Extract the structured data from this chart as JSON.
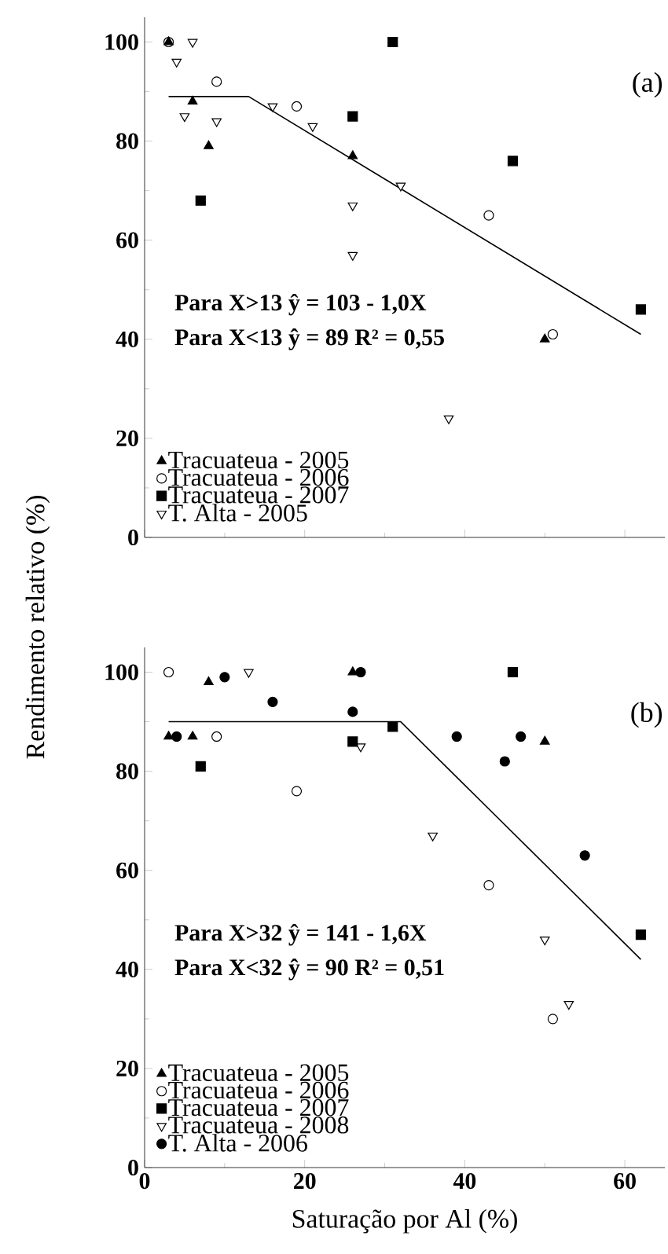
{
  "chart_data": [
    {
      "type": "scatter",
      "ylabel": "Rendimento relativo (%)",
      "xlim": [
        0,
        65
      ],
      "ylim": [
        0,
        105
      ],
      "xticks": [
        0,
        20,
        40,
        60
      ],
      "yticks": [
        0,
        20,
        40,
        60,
        80,
        100
      ],
      "tick_labels": "y",
      "legend": "bottom left",
      "grid": false,
      "annotations": [
        "(a)",
        "Para X>13  ŷ = 103 - 1,0X",
        "Para X<13 ŷ = 89  R² = 0,55"
      ],
      "series": [
        {
          "name": "Tracuateua - 2005",
          "color": "#000000",
          "marker": "triangle",
          "x": [
            3,
            6,
            8,
            26,
            50
          ],
          "values": [
            100,
            88,
            79,
            77,
            40
          ]
        },
        {
          "name": "Tracuateua - 2006",
          "color": "#ffffff",
          "marker": "circle",
          "x": [
            3,
            9,
            19,
            43,
            51
          ],
          "values": [
            100,
            92,
            87,
            65,
            41
          ]
        },
        {
          "name": "Tracuateua - 2007",
          "color": "#000000",
          "marker": "square",
          "x": [
            7,
            31,
            26,
            46,
            62
          ],
          "values": [
            68,
            100,
            85,
            76,
            46
          ]
        },
        {
          "name": "T. Alta - 2005",
          "color": "#ffffff",
          "marker": "triangle-down",
          "x": [
            4,
            6,
            5,
            9,
            16,
            21,
            26,
            26,
            32,
            38
          ],
          "values": [
            96,
            100,
            85,
            84,
            87,
            83,
            67,
            57,
            71,
            24
          ]
        },
        {
          "type": "line",
          "color": "#000000",
          "marker": "none",
          "x": [
            3,
            13,
            62
          ],
          "values": [
            89,
            89,
            41
          ]
        }
      ]
    },
    {
      "type": "scatter",
      "xlabel": "Saturação por Al (%)",
      "xlim": [
        0,
        65
      ],
      "ylim": [
        0,
        105
      ],
      "xticks": [
        0,
        20,
        40,
        60
      ],
      "yticks": [
        0,
        20,
        40,
        60,
        80,
        100
      ],
      "legend": "bottom left",
      "grid": false,
      "annotations": [
        "(b)",
        "Para X>32  ŷ = 141 - 1,6X",
        "Para X<32 ŷ = 90  R² = 0,51"
      ],
      "series": [
        {
          "name": "Tracuateua - 2005",
          "color": "#000000",
          "marker": "triangle",
          "x": [
            3,
            6,
            8,
            26,
            50
          ],
          "values": [
            87,
            87,
            98,
            100,
            86
          ]
        },
        {
          "name": "Tracuateua - 2006",
          "color": "#ffffff",
          "marker": "circle",
          "x": [
            3,
            9,
            19,
            43,
            51
          ],
          "values": [
            100,
            87,
            76,
            57,
            30
          ]
        },
        {
          "name": "Tracuateua - 2007",
          "color": "#000000",
          "marker": "square",
          "x": [
            7,
            26,
            31,
            46,
            62
          ],
          "values": [
            81,
            86,
            89,
            100,
            47
          ]
        },
        {
          "name": "Tracuateua - 2008",
          "color": "#ffffff",
          "marker": "triangle-down",
          "x": [
            13,
            27,
            36,
            50,
            53
          ],
          "values": [
            100,
            85,
            67,
            46,
            33
          ]
        },
        {
          "name": "T. Alta - 2006",
          "color": "#000000",
          "marker": "circle",
          "x": [
            4,
            10,
            16,
            26,
            27,
            39,
            45,
            47,
            55
          ],
          "values": [
            87,
            99,
            94,
            92,
            100,
            87,
            82,
            87,
            63
          ]
        },
        {
          "type": "line",
          "color": "#000000",
          "marker": "none",
          "x": [
            3,
            32,
            62
          ],
          "values": [
            90,
            90,
            42
          ]
        }
      ]
    }
  ]
}
